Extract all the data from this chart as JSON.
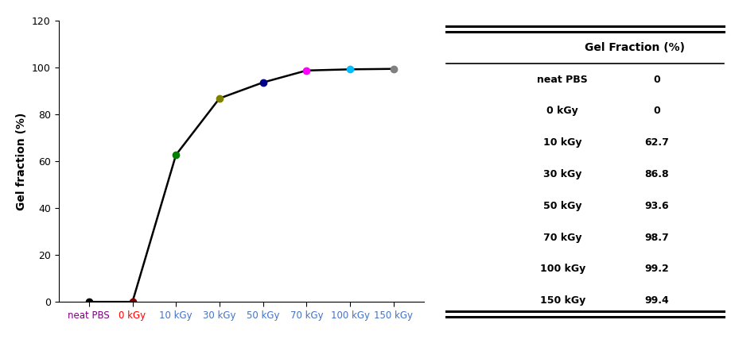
{
  "x_labels": [
    "neat PBS",
    "0 kGy",
    "10 kGy",
    "30 kGy",
    "50 kGy",
    "70 kGy",
    "100 kGy",
    "150 kGy"
  ],
  "x_positions": [
    0,
    1,
    2,
    3,
    4,
    5,
    6,
    7
  ],
  "y_values": [
    0,
    0,
    62.7,
    86.8,
    93.6,
    98.7,
    99.2,
    99.4
  ],
  "point_colors": [
    "#800080",
    "#ff0000",
    "#008000",
    "#808000",
    "#00008B",
    "#ff00ff",
    "#00BFFF",
    "#808080"
  ],
  "marker_colors": [
    "#000000",
    "#800000",
    "#008000",
    "#808000",
    "#00008B",
    "#ff00ff",
    "#00BFFF",
    "#808080"
  ],
  "ylabel": "Gel fraction (%)",
  "ylim": [
    0,
    120
  ],
  "yticks": [
    0,
    20,
    40,
    60,
    80,
    100,
    120
  ],
  "line_color": "#000000",
  "table_header": [
    "",
    "Gel Fraction (%)"
  ],
  "table_rows": [
    [
      "neat PBS",
      "0"
    ],
    [
      "0 kGy",
      "0"
    ],
    [
      "10 kGy",
      "62.7"
    ],
    [
      "30 kGy",
      "86.8"
    ],
    [
      "50 kGy",
      "93.6"
    ],
    [
      "70 kGy",
      "98.7"
    ],
    [
      "100 kGy",
      "99.2"
    ],
    [
      "150 kGy",
      "99.4"
    ]
  ],
  "bg_color": "#ffffff",
  "label_colors": [
    "#800080",
    "#ff0000",
    "#4472c4",
    "#4472c4",
    "#4472c4",
    "#4472c4",
    "#4472c4",
    "#4472c4"
  ]
}
